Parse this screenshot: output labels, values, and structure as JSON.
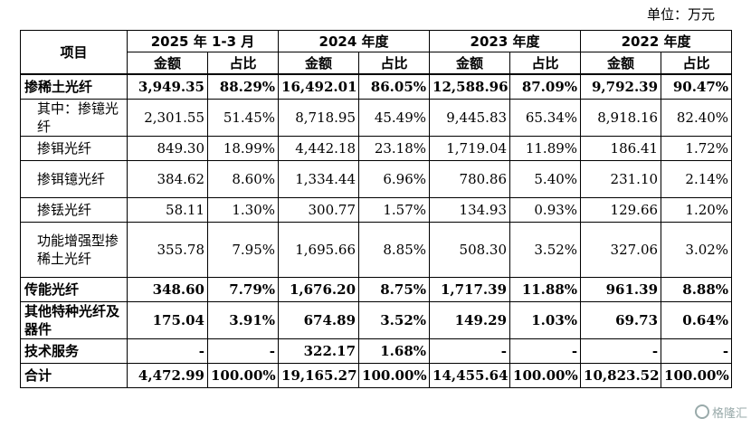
{
  "unit_label": "单位：万元",
  "header": {
    "item_label": "项目",
    "periods": [
      "2025 年 1-3 月",
      "2024 年度",
      "2023 年度",
      "2022 年度"
    ],
    "amount_label": "金额",
    "ratio_label": "占比"
  },
  "rows": [
    {
      "label": "掺稀土光纤",
      "values": [
        "3,949.35",
        "88.29%",
        "16,492.01",
        "86.05%",
        "12,588.96",
        "87.09%",
        "9,792.39",
        "90.47%"
      ]
    },
    {
      "label": "其中：掺镱光纤",
      "values": [
        "2,301.55",
        "51.45%",
        "8,718.95",
        "45.49%",
        "9,445.83",
        "65.34%",
        "8,918.16",
        "82.40%"
      ]
    },
    {
      "label": "掺铒光纤",
      "values": [
        "849.30",
        "18.99%",
        "4,442.18",
        "23.18%",
        "1,719.04",
        "11.89%",
        "186.41",
        "1.72%"
      ]
    },
    {
      "label": "掺铒镱光纤",
      "values": [
        "384.62",
        "8.60%",
        "1,334.44",
        "6.96%",
        "780.86",
        "5.40%",
        "231.10",
        "2.14%"
      ]
    },
    {
      "label": "掺铥光纤",
      "values": [
        "58.11",
        "1.30%",
        "300.77",
        "1.57%",
        "134.93",
        "0.93%",
        "129.66",
        "1.20%"
      ]
    },
    {
      "label": "功能增强型掺稀土光纤",
      "values": [
        "355.78",
        "7.95%",
        "1,695.66",
        "8.85%",
        "508.30",
        "3.52%",
        "327.06",
        "3.02%"
      ]
    },
    {
      "label": "传能光纤",
      "values": [
        "348.60",
        "7.79%",
        "1,676.20",
        "8.75%",
        "1,717.39",
        "11.88%",
        "961.39",
        "8.88%"
      ]
    },
    {
      "label": "其他特种光纤及器件",
      "values": [
        "175.04",
        "3.91%",
        "674.89",
        "3.52%",
        "149.29",
        "1.03%",
        "69.73",
        "0.64%"
      ]
    },
    {
      "label": "技术服务",
      "values": [
        "-",
        "-",
        "322.17",
        "1.68%",
        "-",
        "-",
        "-",
        "-"
      ]
    },
    {
      "label": "合计",
      "values": [
        "4,472.99",
        "100.00%",
        "19,165.27",
        "100.00%",
        "14,455.64",
        "100.00%",
        "10,823.52",
        "100.00%"
      ]
    }
  ],
  "watermark": "格隆汇"
}
